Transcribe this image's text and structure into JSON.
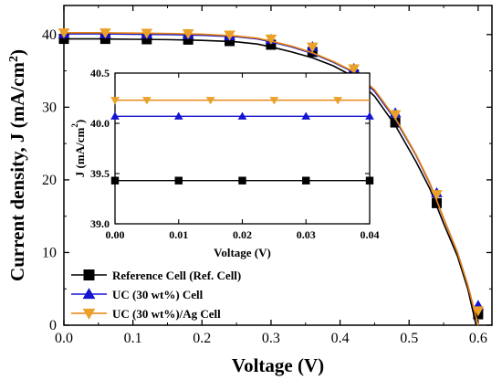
{
  "chart_data": [
    {
      "type": "line",
      "xlabel": "Voltage (V)",
      "ylabel": "Current density, J (mA/cm²)",
      "ylabel_parts": {
        "main": "Current density, J (mA/cm",
        "sup": "2",
        "tail": ")"
      },
      "xlim": [
        0.0,
        0.62
      ],
      "ylim": [
        0,
        44
      ],
      "xticks": [
        "0.0",
        "0.1",
        "0.2",
        "0.3",
        "0.4",
        "0.5",
        "0.6"
      ],
      "xtick_values": [
        0.0,
        0.1,
        0.2,
        0.3,
        0.4,
        0.5,
        0.6
      ],
      "yticks": [
        "0",
        "10",
        "20",
        "30",
        "40"
      ],
      "ytick_values": [
        0,
        10,
        20,
        30,
        40
      ],
      "legend_position": "bottom-left",
      "series": [
        {
          "name": "Reference Cell (Ref. Cell)",
          "marker": "square",
          "color": "#000000",
          "marker_color": "#000000",
          "line": [
            [
              0.0,
              39.4
            ],
            [
              0.05,
              39.4
            ],
            [
              0.1,
              39.35
            ],
            [
              0.15,
              39.3
            ],
            [
              0.2,
              39.2
            ],
            [
              0.25,
              39.0
            ],
            [
              0.28,
              38.7
            ],
            [
              0.3,
              38.3
            ],
            [
              0.33,
              37.6
            ],
            [
              0.36,
              36.8
            ],
            [
              0.39,
              35.7
            ],
            [
              0.42,
              34.2
            ],
            [
              0.45,
              31.5
            ],
            [
              0.48,
              27.5
            ],
            [
              0.51,
              22.5
            ],
            [
              0.53,
              18.8
            ],
            [
              0.55,
              14.0
            ],
            [
              0.57,
              9.5
            ],
            [
              0.585,
              5.0
            ],
            [
              0.597,
              0.0
            ]
          ],
          "points": [
            [
              0.0,
              39.4
            ],
            [
              0.06,
              39.4
            ],
            [
              0.12,
              39.35
            ],
            [
              0.18,
              39.3
            ],
            [
              0.24,
              39.1
            ],
            [
              0.3,
              38.6
            ],
            [
              0.36,
              37.6
            ],
            [
              0.42,
              34.5
            ],
            [
              0.48,
              27.9
            ],
            [
              0.54,
              16.8
            ],
            [
              0.6,
              1.5
            ]
          ]
        },
        {
          "name": "UC (30 wt%) Cell",
          "marker": "triangle-up",
          "color": "#1414d2",
          "marker_color": "#1414d2",
          "line": [
            [
              0.0,
              40.1
            ],
            [
              0.05,
              40.1
            ],
            [
              0.1,
              40.05
            ],
            [
              0.15,
              40.0
            ],
            [
              0.2,
              39.9
            ],
            [
              0.25,
              39.7
            ],
            [
              0.28,
              39.4
            ],
            [
              0.3,
              39.0
            ],
            [
              0.33,
              38.3
            ],
            [
              0.36,
              37.4
            ],
            [
              0.39,
              36.2
            ],
            [
              0.42,
              34.8
            ],
            [
              0.45,
              32.2
            ],
            [
              0.48,
              28.3
            ],
            [
              0.51,
              23.4
            ],
            [
              0.53,
              19.5
            ],
            [
              0.55,
              14.7
            ],
            [
              0.57,
              10.0
            ],
            [
              0.585,
              5.5
            ],
            [
              0.6,
              0.0
            ]
          ],
          "points": [
            [
              0.0,
              40.1
            ],
            [
              0.06,
              40.1
            ],
            [
              0.12,
              40.05
            ],
            [
              0.18,
              40.0
            ],
            [
              0.24,
              39.8
            ],
            [
              0.3,
              39.3
            ],
            [
              0.36,
              38.3
            ],
            [
              0.42,
              35.3
            ],
            [
              0.48,
              29.2
            ],
            [
              0.54,
              18.2
            ],
            [
              0.6,
              2.7
            ]
          ]
        },
        {
          "name": "UC (30 wt%)/Ag Cell",
          "marker": "triangle-down",
          "color": "#e8820a",
          "marker_color": "#eba128",
          "line": [
            [
              0.0,
              40.25
            ],
            [
              0.05,
              40.25
            ],
            [
              0.1,
              40.2
            ],
            [
              0.15,
              40.15
            ],
            [
              0.2,
              40.05
            ],
            [
              0.25,
              39.8
            ],
            [
              0.28,
              39.5
            ],
            [
              0.3,
              39.1
            ],
            [
              0.33,
              38.4
            ],
            [
              0.36,
              37.5
            ],
            [
              0.39,
              36.3
            ],
            [
              0.42,
              34.9
            ],
            [
              0.45,
              32.4
            ],
            [
              0.48,
              28.5
            ],
            [
              0.51,
              23.5
            ],
            [
              0.53,
              19.6
            ],
            [
              0.55,
              14.7
            ],
            [
              0.57,
              10.0
            ],
            [
              0.585,
              5.5
            ],
            [
              0.6,
              0.0
            ]
          ],
          "points": [
            [
              0.0,
              40.25
            ],
            [
              0.06,
              40.25
            ],
            [
              0.12,
              40.2
            ],
            [
              0.18,
              40.15
            ],
            [
              0.24,
              39.95
            ],
            [
              0.3,
              39.4
            ],
            [
              0.36,
              38.3
            ],
            [
              0.42,
              35.3
            ],
            [
              0.48,
              29.0
            ],
            [
              0.54,
              18.0
            ],
            [
              0.6,
              2.0
            ]
          ]
        }
      ]
    },
    {
      "type": "line",
      "role": "inset",
      "xlabel": "Voltage (V)",
      "ylabel": "J (mA/cm²)",
      "ylabel_parts": {
        "main": "J (mA/cm",
        "sup": "2",
        "tail": ")"
      },
      "xlim": [
        0.0,
        0.04
      ],
      "ylim": [
        39.0,
        40.5
      ],
      "xticks": [
        "0.00",
        "0.01",
        "0.02",
        "0.03",
        "0.04"
      ],
      "xtick_values": [
        0.0,
        0.01,
        0.02,
        0.03,
        0.04
      ],
      "yticks": [
        "39.0",
        "39.5",
        "40.0",
        "40.5"
      ],
      "ytick_values": [
        39.0,
        39.5,
        40.0,
        40.5
      ],
      "series": [
        {
          "ref": "Reference Cell (Ref. Cell)",
          "marker": "square",
          "color": "#000000",
          "marker_color": "#000000",
          "line": [
            [
              0.0,
              39.43
            ],
            [
              0.04,
              39.43
            ]
          ],
          "points": [
            [
              0.0,
              39.43
            ],
            [
              0.01,
              39.43
            ],
            [
              0.02,
              39.43
            ],
            [
              0.03,
              39.43
            ],
            [
              0.04,
              39.43
            ]
          ]
        },
        {
          "ref": "UC (30 wt%) Cell",
          "marker": "triangle-up",
          "color": "#1414d2",
          "marker_color": "#1414d2",
          "line": [
            [
              0.0,
              40.07
            ],
            [
              0.04,
              40.07
            ]
          ],
          "points": [
            [
              0.0,
              40.07
            ],
            [
              0.01,
              40.07
            ],
            [
              0.02,
              40.07
            ],
            [
              0.03,
              40.07
            ],
            [
              0.04,
              40.07
            ]
          ]
        },
        {
          "ref": "UC (30 wt%)/Ag Cell",
          "marker": "triangle-down",
          "color": "#e8820a",
          "marker_color": "#eba128",
          "line": [
            [
              0.0,
              40.23
            ],
            [
              0.04,
              40.23
            ]
          ],
          "points": [
            [
              0.0,
              40.23
            ],
            [
              0.005,
              40.23
            ],
            [
              0.015,
              40.23
            ],
            [
              0.025,
              40.23
            ],
            [
              0.035,
              40.23
            ]
          ]
        }
      ]
    }
  ]
}
